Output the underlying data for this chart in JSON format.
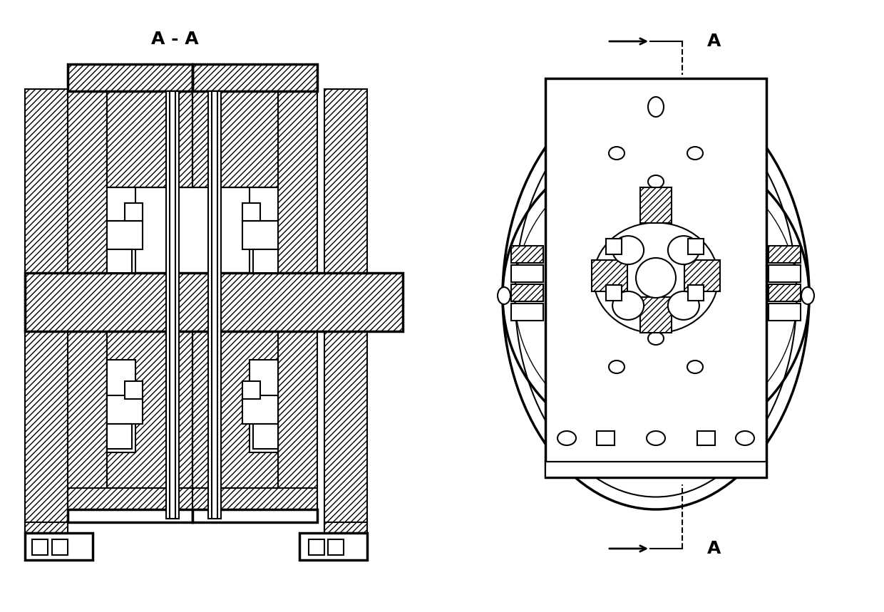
{
  "bg_color": "#ffffff",
  "lw": 1.5,
  "tlw": 2.5,
  "title_left": "A - A",
  "label_A": "A",
  "figsize": [
    12.4,
    8.59
  ],
  "dpi": 100
}
